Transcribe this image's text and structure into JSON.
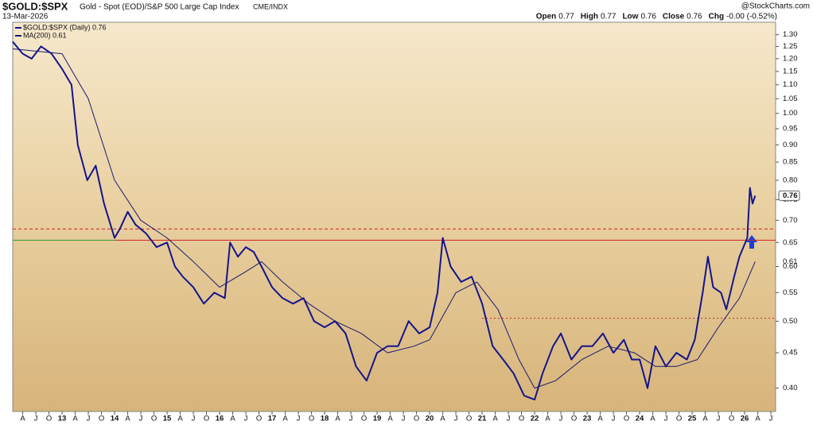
{
  "chart_data": {
    "type": "line",
    "title": "$GOLD:$SPX",
    "subtitle": "Gold - Spot (EOD)/S&P 500 Large Cap Index",
    "exchange": "CME/INDX",
    "date": "13-Mar-2026",
    "source": "@StockCharts.com",
    "quote": [
      {
        "label": "Open",
        "value": "0.77"
      },
      {
        "label": "High",
        "value": "0.77"
      },
      {
        "label": "Low",
        "value": "0.76"
      },
      {
        "label": "Close",
        "value": "0.76"
      },
      {
        "label": "Chg",
        "value": "-0.00 (-0.52%)"
      }
    ],
    "log_scale": true,
    "xlim": [
      2012.06,
      2026.59
    ],
    "ylim": [
      0.37,
      1.355
    ],
    "yticks": [
      {
        "value": 0.4,
        "label": "0.40"
      },
      {
        "value": 0.45,
        "label": "0.45"
      },
      {
        "value": 0.5,
        "label": "0.50"
      },
      {
        "value": 0.55,
        "label": "0.55"
      },
      {
        "value": 0.6,
        "label": "0.60"
      },
      {
        "value": 0.65,
        "label": "0.65"
      },
      {
        "value": 0.7,
        "label": "0.70"
      },
      {
        "value": 0.75,
        "label": "0.75"
      },
      {
        "value": 0.8,
        "label": "0.80"
      },
      {
        "value": 0.85,
        "label": "0.85"
      },
      {
        "value": 0.9,
        "label": "0.90"
      },
      {
        "value": 0.95,
        "label": "0.95"
      },
      {
        "value": 1.0,
        "label": "1.00"
      },
      {
        "value": 1.05,
        "label": "1.05"
      },
      {
        "value": 1.1,
        "label": "1.10"
      },
      {
        "value": 1.15,
        "label": "1.15"
      },
      {
        "value": 1.2,
        "label": "1.20"
      },
      {
        "value": 1.25,
        "label": "1.25"
      },
      {
        "value": 1.3,
        "label": "1.30"
      }
    ],
    "xticks": [
      {
        "value": 2012.25,
        "label": "A"
      },
      {
        "value": 2012.5,
        "label": "J"
      },
      {
        "value": 2012.75,
        "label": "O"
      },
      {
        "value": 2013,
        "label": "13"
      },
      {
        "value": 2013.25,
        "label": "A"
      },
      {
        "value": 2013.5,
        "label": "J"
      },
      {
        "value": 2013.75,
        "label": "O"
      },
      {
        "value": 2014,
        "label": "14"
      },
      {
        "value": 2014.25,
        "label": "A"
      },
      {
        "value": 2014.5,
        "label": "J"
      },
      {
        "value": 2014.75,
        "label": "O"
      },
      {
        "value": 2015,
        "label": "15"
      },
      {
        "value": 2015.25,
        "label": "A"
      },
      {
        "value": 2015.5,
        "label": "J"
      },
      {
        "value": 2015.75,
        "label": "O"
      },
      {
        "value": 2016,
        "label": "16"
      },
      {
        "value": 2016.25,
        "label": "A"
      },
      {
        "value": 2016.5,
        "label": "J"
      },
      {
        "value": 2016.75,
        "label": "O"
      },
      {
        "value": 2017,
        "label": "17"
      },
      {
        "value": 2017.25,
        "label": "A"
      },
      {
        "value": 2017.5,
        "label": "J"
      },
      {
        "value": 2017.75,
        "label": "O"
      },
      {
        "value": 2018,
        "label": "18"
      },
      {
        "value": 2018.25,
        "label": "A"
      },
      {
        "value": 2018.5,
        "label": "J"
      },
      {
        "value": 2018.75,
        "label": "O"
      },
      {
        "value": 2019,
        "label": "19"
      },
      {
        "value": 2019.25,
        "label": "A"
      },
      {
        "value": 2019.5,
        "label": "J"
      },
      {
        "value": 2019.75,
        "label": "O"
      },
      {
        "value": 2020,
        "label": "20"
      },
      {
        "value": 2020.25,
        "label": "A"
      },
      {
        "value": 2020.5,
        "label": "J"
      },
      {
        "value": 2020.75,
        "label": "O"
      },
      {
        "value": 2021,
        "label": "21"
      },
      {
        "value": 2021.25,
        "label": "A"
      },
      {
        "value": 2021.5,
        "label": "J"
      },
      {
        "value": 2021.75,
        "label": "O"
      },
      {
        "value": 2022,
        "label": "22"
      },
      {
        "value": 2022.25,
        "label": "A"
      },
      {
        "value": 2022.5,
        "label": "J"
      },
      {
        "value": 2022.75,
        "label": "O"
      },
      {
        "value": 2023,
        "label": "23"
      },
      {
        "value": 2023.25,
        "label": "A"
      },
      {
        "value": 2023.5,
        "label": "J"
      },
      {
        "value": 2023.75,
        "label": "O"
      },
      {
        "value": 2024,
        "label": "24"
      },
      {
        "value": 2024.25,
        "label": "A"
      },
      {
        "value": 2024.5,
        "label": "J"
      },
      {
        "value": 2024.75,
        "label": "O"
      },
      {
        "value": 2025,
        "label": "25"
      },
      {
        "value": 2025.25,
        "label": "A"
      },
      {
        "value": 2025.5,
        "label": "J"
      },
      {
        "value": 2025.75,
        "label": "O"
      },
      {
        "value": 2026,
        "label": "26"
      },
      {
        "value": 2026.25,
        "label": "A"
      },
      {
        "value": 2026.5,
        "label": "J"
      }
    ],
    "series": [
      {
        "name": "$GOLD:$SPX (Daily) 0.76",
        "color": "#14148c",
        "width": 2,
        "last_label": "0.76",
        "x": [
          2012.06,
          2012.25,
          2012.42,
          2012.6,
          2012.8,
          2013.0,
          2013.18,
          2013.3,
          2013.48,
          2013.64,
          2013.8,
          2014.0,
          2014.1,
          2014.25,
          2014.4,
          2014.6,
          2014.8,
          2015.0,
          2015.15,
          2015.3,
          2015.5,
          2015.7,
          2015.9,
          2016.1,
          2016.2,
          2016.35,
          2016.5,
          2016.65,
          2016.8,
          2017.0,
          2017.2,
          2017.4,
          2017.6,
          2017.8,
          2018.0,
          2018.2,
          2018.4,
          2018.6,
          2018.8,
          2019.0,
          2019.2,
          2019.4,
          2019.6,
          2019.8,
          2020.0,
          2020.15,
          2020.25,
          2020.4,
          2020.6,
          2020.8,
          2021.0,
          2021.2,
          2021.4,
          2021.6,
          2021.8,
          2022.0,
          2022.15,
          2022.35,
          2022.5,
          2022.7,
          2022.9,
          2023.1,
          2023.3,
          2023.5,
          2023.7,
          2023.85,
          2024.0,
          2024.15,
          2024.3,
          2024.5,
          2024.7,
          2024.9,
          2025.05,
          2025.2,
          2025.3,
          2025.4,
          2025.55,
          2025.65,
          2025.8,
          2025.9,
          2026.05,
          2026.1,
          2026.15,
          2026.2
        ],
        "values": [
          1.27,
          1.22,
          1.2,
          1.25,
          1.22,
          1.16,
          1.1,
          0.9,
          0.8,
          0.84,
          0.74,
          0.66,
          0.68,
          0.72,
          0.69,
          0.67,
          0.64,
          0.65,
          0.6,
          0.58,
          0.56,
          0.53,
          0.55,
          0.54,
          0.65,
          0.62,
          0.64,
          0.63,
          0.6,
          0.56,
          0.54,
          0.53,
          0.54,
          0.5,
          0.49,
          0.5,
          0.48,
          0.43,
          0.41,
          0.45,
          0.46,
          0.46,
          0.5,
          0.48,
          0.49,
          0.55,
          0.66,
          0.6,
          0.57,
          0.58,
          0.53,
          0.46,
          0.44,
          0.42,
          0.39,
          0.385,
          0.42,
          0.46,
          0.48,
          0.44,
          0.46,
          0.46,
          0.48,
          0.45,
          0.47,
          0.44,
          0.44,
          0.4,
          0.46,
          0.43,
          0.45,
          0.44,
          0.47,
          0.55,
          0.62,
          0.56,
          0.55,
          0.52,
          0.58,
          0.62,
          0.66,
          0.78,
          0.74,
          0.76
        ]
      },
      {
        "name": "MA(200) 0.61",
        "color": "#1a1a6e",
        "width": 1,
        "last_label": "0.61",
        "x": [
          2012.06,
          2013.0,
          2013.5,
          2014.0,
          2014.5,
          2015.0,
          2015.5,
          2016.0,
          2016.5,
          2016.8,
          2017.2,
          2017.7,
          2018.2,
          2018.7,
          2019.2,
          2019.7,
          2020.0,
          2020.5,
          2020.9,
          2021.3,
          2021.7,
          2022.0,
          2022.4,
          2022.9,
          2023.4,
          2023.9,
          2024.3,
          2024.7,
          2025.1,
          2025.5,
          2025.9,
          2026.2
        ],
        "values": [
          1.24,
          1.22,
          1.05,
          0.8,
          0.7,
          0.66,
          0.61,
          0.56,
          0.59,
          0.61,
          0.57,
          0.53,
          0.5,
          0.48,
          0.45,
          0.46,
          0.47,
          0.55,
          0.57,
          0.52,
          0.44,
          0.4,
          0.41,
          0.44,
          0.46,
          0.45,
          0.43,
          0.43,
          0.44,
          0.49,
          0.54,
          0.61
        ]
      }
    ],
    "reference_lines": [
      {
        "value": 0.68,
        "color": "#cc2222",
        "style": "dashed",
        "xrange": [
          2012.06,
          2026.59
        ]
      },
      {
        "value": 0.655,
        "color": "#2a9a2a",
        "style": "solid",
        "xrange": [
          2012.06,
          2014.0
        ]
      },
      {
        "value": 0.655,
        "color": "#cc2222",
        "style": "solid",
        "xrange": [
          2014.0,
          2026.59
        ]
      },
      {
        "value": 0.505,
        "color": "#cc2222",
        "style": "dotted",
        "xrange": [
          2021.0,
          2026.59
        ]
      }
    ]
  }
}
